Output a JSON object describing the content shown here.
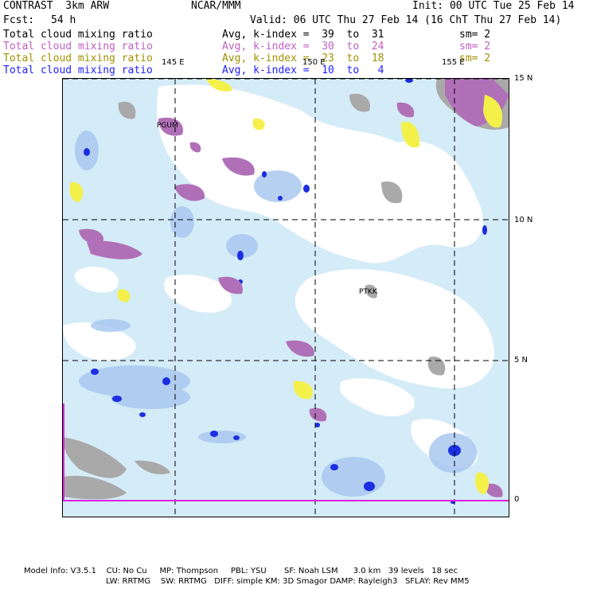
{
  "header": {
    "model": "CONTRAST  3km ARW",
    "org": "NCAR/MMM",
    "init": "Init: 00 UTC Tue 25 Feb 14",
    "fcst_label": "Fcst:",
    "fcst_value": "54 h",
    "valid": "Valid: 06 UTC Thu 27 Feb 14 (16 ChT Thu 27 Feb 14)"
  },
  "legend": [
    {
      "field": "Total cloud mixing ratio",
      "avg": "Avg, k-index =  39  to  31",
      "sm": "sm= 2",
      "color": "#000000"
    },
    {
      "field": "Total cloud mixing ratio",
      "avg": "Avg, k-index =  30  to  24",
      "sm": "sm= 2",
      "color": "#c060c0"
    },
    {
      "field": "Total cloud mixing ratio",
      "avg": "Avg, k-index =  23  to  18",
      "sm": "sm= 2",
      "color": "#a09000"
    },
    {
      "field": "Total cloud mixing ratio",
      "avg": "Avg, k-index =  10  to   4",
      "sm": "",
      "color": "#2020ff"
    }
  ],
  "axes": {
    "lon_labels": [
      "145 E",
      "150 E",
      "155 E"
    ],
    "lat_labels": [
      "15 N",
      "10 N",
      "5 N",
      "0"
    ]
  },
  "stations": [
    "PGUM",
    "PTKK"
  ],
  "colors": {
    "grey_cloud": "#a9a9a9",
    "purple_cloud": "#b070b8",
    "yellow_cloud": "#f4f04a",
    "light_blue": "#d4ecf7",
    "mid_blue": "#9ec0ee",
    "deep_blue": "#1b2ee0",
    "magenta_line": "#e020e0"
  },
  "footer": {
    "line1": "Model Info: V3.5.1    CU: No Cu     MP: Thompson     PBL: YSU       SF: Noah LSM      3.0 km   39 levels   18 sec",
    "line2": "LW: RRTMG    SW: RRTMG   DIFF: simple KM: 3D Smagor DAMP: Rayleigh3   SFLAY: Rev MM5"
  }
}
